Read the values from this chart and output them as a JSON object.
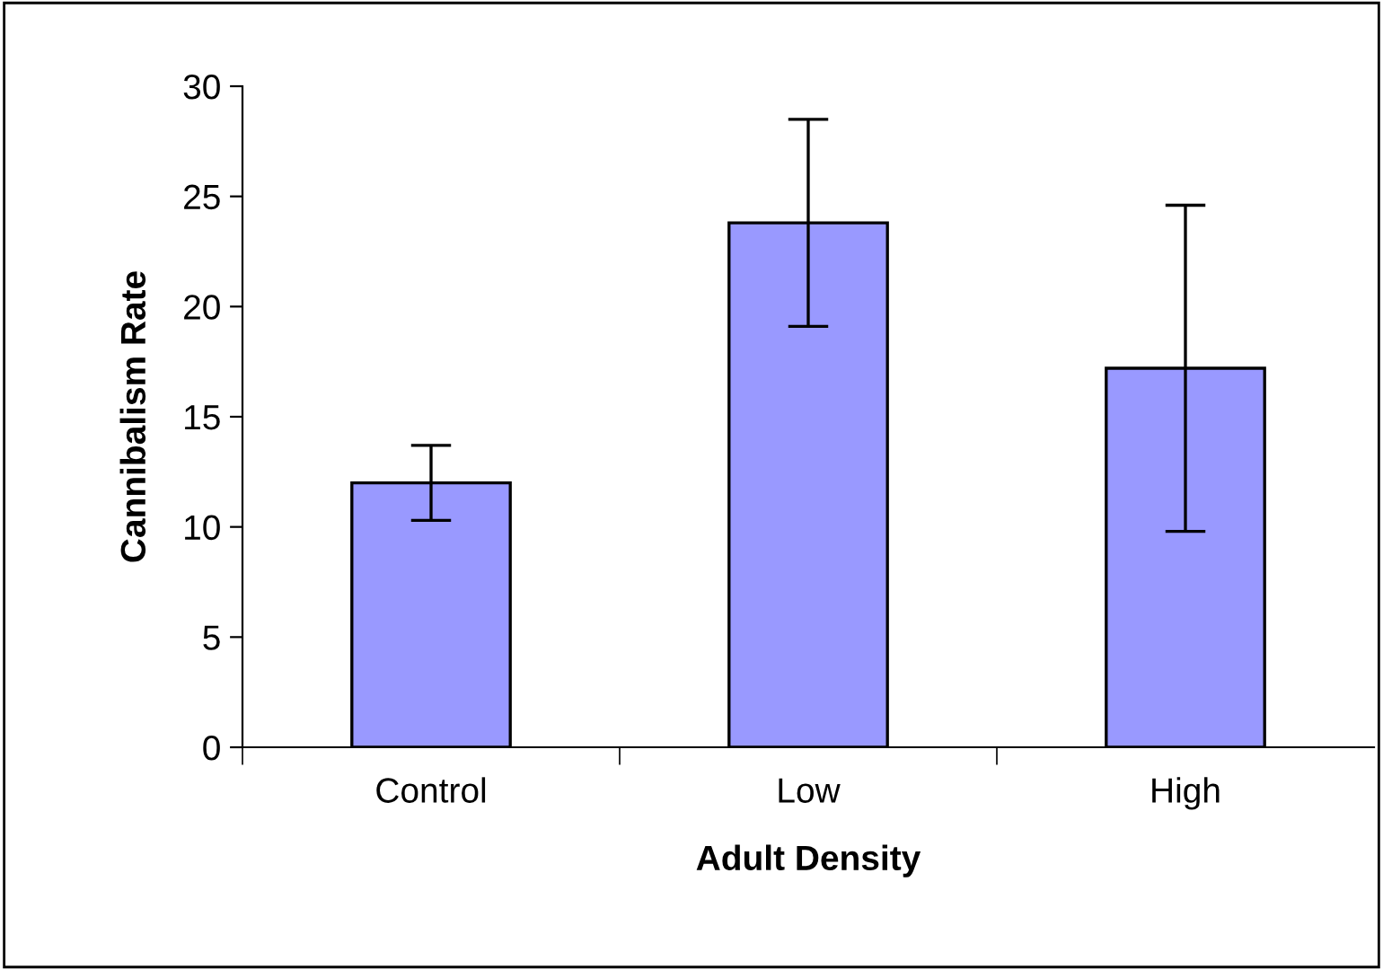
{
  "chart_data": {
    "type": "bar",
    "xlabel": "Adult Density",
    "ylabel": "Cannibalism Rate",
    "categories": [
      "Control",
      "Low",
      "High"
    ],
    "series": [
      {
        "color": "#9999ff",
        "values": [
          12.0,
          23.8,
          17.2
        ],
        "errors": [
          1.7,
          4.7,
          7.4
        ]
      }
    ],
    "ylim": [
      0,
      30
    ],
    "yticks": [
      0,
      5,
      10,
      15,
      20,
      25,
      30
    ],
    "grid": false,
    "legend": false
  }
}
